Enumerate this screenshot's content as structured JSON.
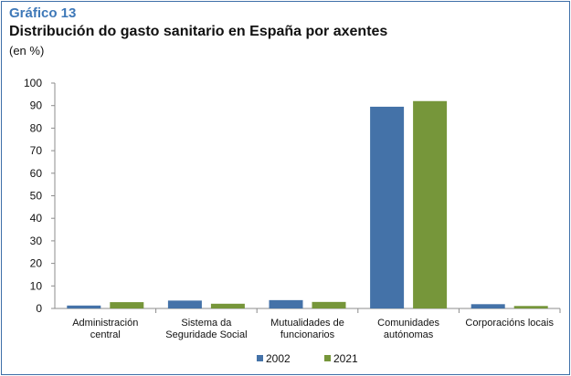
{
  "header": {
    "label": "Gráfico 13",
    "title": "Distribución do gasto sanitario en España por axentes",
    "subtitle": "(en %)"
  },
  "chart_data": {
    "type": "bar",
    "title": "Distribución do gasto sanitario en España por axentes",
    "subtitle": "(en %)",
    "xlabel": "",
    "ylabel": "",
    "ylim": [
      0,
      100
    ],
    "yticks": [
      0,
      10,
      20,
      30,
      40,
      50,
      60,
      70,
      80,
      90,
      100
    ],
    "grid": false,
    "legend_position": "bottom",
    "categories": [
      [
        "Administración",
        "central"
      ],
      [
        "Sistema da",
        "Seguridade Social"
      ],
      [
        "Mutualidades de",
        "funcionarios"
      ],
      [
        "Comunidades",
        "autónomas"
      ],
      [
        "Corporacións locais"
      ]
    ],
    "series": [
      {
        "name": "2002",
        "color": "#4472a8",
        "values": [
          1.3,
          3.5,
          3.7,
          89.5,
          1.9
        ]
      },
      {
        "name": "2021",
        "color": "#76963a",
        "values": [
          2.8,
          2.1,
          2.9,
          92.0,
          1.1
        ]
      }
    ]
  }
}
